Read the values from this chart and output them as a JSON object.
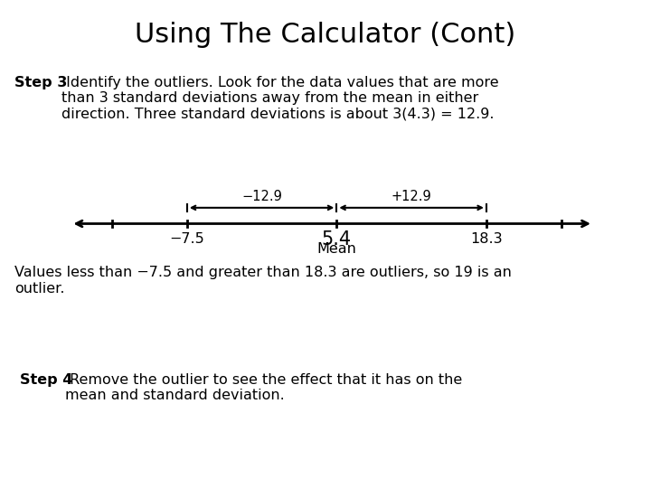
{
  "title": "Using The Calculator (Cont)",
  "title_fontsize": 22,
  "background_color": "#ffffff",
  "step3_bold": "Step 3",
  "step3_rest": " Identify the outliers. Look for the data values that are more\nthan 3 standard deviations away from the mean in either\ndirection. Three standard deviations is about 3(4.3) = 12.9.",
  "mean": 5.4,
  "lower_bound": -7.5,
  "upper_bound": 18.3,
  "sd_label_left": "−12.9",
  "sd_label_right": "+12.9",
  "mean_label": "5.4",
  "mean_sublabel": "Mean",
  "lower_label": "−7.5",
  "upper_label": "18.3",
  "values_bold": "",
  "values_text": "Values less than −7.5 and greater than 18.3 are outliers, so 19 is an\noutlier.",
  "step4_bold": "Step 4",
  "step4_rest": " Remove the outlier to see the effect that it has on the\nmean and standard deviation.",
  "text_fontsize": 11.5,
  "nl_xlim_min": -18,
  "nl_xlim_max": 28,
  "tick_positions": [
    -13.95,
    -7.5,
    5.4,
    18.3,
    24.75
  ],
  "nl_yline": 0.0,
  "nl_tick_half": 0.3
}
